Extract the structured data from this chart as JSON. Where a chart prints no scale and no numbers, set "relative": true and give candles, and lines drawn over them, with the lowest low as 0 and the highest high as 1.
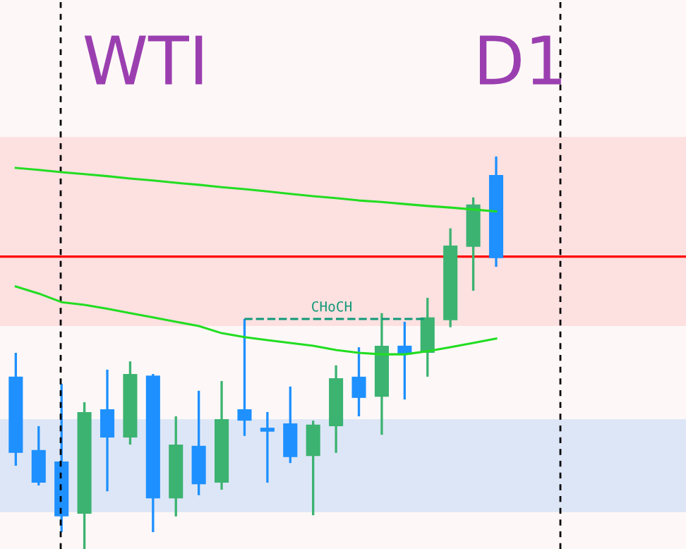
{
  "chart_data": {
    "type": "candlestick",
    "title": "WTI",
    "subtitle": "D1",
    "relative": true,
    "categories": [
      null,
      null,
      null,
      null,
      null,
      null,
      null,
      null,
      null,
      null,
      null,
      null,
      null,
      null,
      null,
      null,
      null,
      null,
      null,
      null,
      null,
      null
    ],
    "ohlc": [
      [
        0.439,
        0.5,
        0.212,
        0.245
      ],
      [
        0.252,
        0.313,
        0.162,
        0.169
      ],
      [
        0.223,
        0.421,
        0.043,
        0.083
      ],
      [
        0.09,
        0.374,
        0,
        0.349
      ],
      [
        0.356,
        0.457,
        0.147,
        0.284
      ],
      [
        0.284,
        0.478,
        0.266,
        0.446
      ],
      [
        0.442,
        0.446,
        0.043,
        0.129
      ],
      [
        0.129,
        0.338,
        0.083,
        0.266
      ],
      [
        0.263,
        0.403,
        0.137,
        0.165
      ],
      [
        0.169,
        0.428,
        0.151,
        0.331
      ],
      [
        0.356,
        0.586,
        0.288,
        0.327
      ],
      [
        0.309,
        0.349,
        0.169,
        0.299
      ],
      [
        0.32,
        0.414,
        0.219,
        0.234
      ],
      [
        0.237,
        0.327,
        0.086,
        0.317
      ],
      [
        0.313,
        0.468,
        0.245,
        0.435
      ],
      [
        0.439,
        0.514,
        0.338,
        0.385
      ],
      [
        0.388,
        0.601,
        0.291,
        0.518
      ],
      [
        0.518,
        0.579,
        0.381,
        0.496
      ],
      [
        0.5,
        0.64,
        0.439,
        0.59
      ],
      [
        0.583,
        0.817,
        0.565,
        0.773
      ],
      [
        0.77,
        0.896,
        0.658,
        0.878
      ],
      [
        0.953,
        1,
        0.719,
        0.741
      ]
    ],
    "colors": [
      "#1e90ff",
      "#1e90ff",
      "#1e90ff",
      "#3cb371",
      "#1e90ff",
      "#3cb371",
      "#1e90ff",
      "#3cb371",
      "#1e90ff",
      "#3cb371",
      "#1e90ff",
      "#1e90ff",
      "#1e90ff",
      "#3cb371",
      "#3cb371",
      "#1e90ff",
      "#3cb371",
      "#1e90ff",
      "#3cb371",
      "#3cb371",
      "#3cb371",
      "#1e90ff"
    ],
    "series": [
      {
        "type": "line",
        "color": "#22dd22",
        "values": [
          0.971,
          0.966,
          0.96,
          0.955,
          0.95,
          0.944,
          0.939,
          0.933,
          0.928,
          0.922,
          0.917,
          0.911,
          0.905,
          0.899,
          0.894,
          0.888,
          0.884,
          0.879,
          0.874,
          0.87,
          0.865,
          0.86
        ]
      },
      {
        "type": "line",
        "color": "#22dd22",
        "values": [
          0.669,
          0.651,
          0.629,
          0.622,
          0.612,
          0.601,
          0.59,
          0.579,
          0.568,
          0.55,
          0.54,
          0.532,
          0.525,
          0.518,
          0.507,
          0.5,
          0.496,
          0.496,
          0.504,
          0.514,
          0.525,
          0.536
        ]
      },
      {
        "type": "line",
        "color": "#119977",
        "line_style": "dashed",
        "values": [
          null,
          null,
          null,
          null,
          null,
          null,
          null,
          null,
          null,
          null,
          0.586,
          0.586,
          0.586,
          0.586,
          0.586,
          0.586,
          0.586,
          0.586,
          0.586,
          null,
          null,
          null
        ]
      }
    ],
    "bands": [
      {
        "axis": "y",
        "from": 0.568,
        "to": 1.05,
        "color": "#fde0e0"
      },
      {
        "axis": "y",
        "from": 0.094,
        "to": 0.331,
        "color": "#dde6f7"
      }
    ],
    "ref_lines": [
      {
        "axis": "y",
        "value": 0.745,
        "color": "#ff0000"
      }
    ],
    "annotations": [
      {
        "text": "CHoCH",
        "y": 0.586
      }
    ]
  }
}
